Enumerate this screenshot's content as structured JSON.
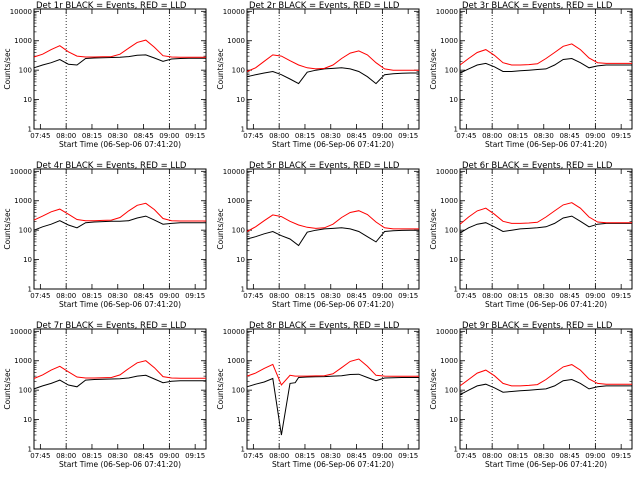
{
  "layout": {
    "rows": 3,
    "cols": 3
  },
  "common": {
    "ylabel": "Counts/sec",
    "xlabel": "Start Time (06-Sep-06 07:41:20)",
    "xticks": [
      "07:45",
      "08:00",
      "08:15",
      "08:30",
      "08:45",
      "09:00",
      "09:15"
    ],
    "xtick_values": [
      3.7,
      18.7,
      33.7,
      48.7,
      63.7,
      78.7,
      93.7
    ],
    "xlim": [
      0,
      100
    ],
    "yticks": [
      "1",
      "10",
      "100",
      "1000",
      "10000"
    ],
    "ylim": [
      1,
      12000
    ],
    "dotted_x": [
      18.7,
      78.7
    ],
    "colors": {
      "events": "#000000",
      "lld": "#ff0000"
    }
  },
  "chart_data": [
    {
      "type": "line",
      "title": "Det 1r BLACK = Events, RED = LLD",
      "scale": "log",
      "x": [
        0,
        5,
        10,
        15,
        20,
        25,
        30,
        35,
        40,
        45,
        50,
        55,
        60,
        65,
        70,
        75,
        80,
        85,
        90,
        95,
        100
      ],
      "series": [
        {
          "name": "Events",
          "values": [
            120,
            150,
            180,
            230,
            160,
            150,
            250,
            260,
            265,
            270,
            275,
            290,
            320,
            330,
            260,
            200,
            240,
            250,
            255,
            255,
            255
          ]
        },
        {
          "name": "LLD",
          "values": [
            280,
            350,
            500,
            680,
            420,
            300,
            280,
            280,
            285,
            290,
            350,
            560,
            880,
            1050,
            600,
            310,
            280,
            275,
            275,
            275,
            275
          ]
        }
      ]
    },
    {
      "type": "line",
      "title": "Det 2r BLACK = Events, RED = LLD",
      "scale": "log",
      "x": [
        0,
        5,
        10,
        15,
        20,
        25,
        30,
        35,
        40,
        45,
        50,
        55,
        60,
        65,
        70,
        75,
        80,
        85,
        90,
        95,
        100
      ],
      "series": [
        {
          "name": "Events",
          "values": [
            60,
            70,
            80,
            90,
            70,
            50,
            35,
            85,
            100,
            110,
            115,
            120,
            110,
            90,
            60,
            35,
            70,
            75,
            78,
            80,
            80
          ]
        },
        {
          "name": "LLD",
          "values": [
            90,
            120,
            200,
            330,
            300,
            210,
            150,
            120,
            110,
            115,
            150,
            250,
            380,
            450,
            330,
            180,
            110,
            100,
            100,
            100,
            100
          ]
        }
      ]
    },
    {
      "type": "line",
      "title": "Det 3r BLACK = Events, RED = LLD",
      "scale": "log",
      "x": [
        0,
        5,
        10,
        15,
        20,
        25,
        30,
        35,
        40,
        45,
        50,
        55,
        60,
        65,
        70,
        75,
        80,
        85,
        90,
        95,
        100
      ],
      "series": [
        {
          "name": "Events",
          "values": [
            80,
            110,
            150,
            170,
            130,
            90,
            90,
            95,
            100,
            105,
            110,
            150,
            230,
            250,
            180,
            120,
            140,
            150,
            150,
            150,
            150
          ]
        },
        {
          "name": "LLD",
          "values": [
            150,
            250,
            400,
            500,
            320,
            180,
            150,
            150,
            155,
            165,
            250,
            400,
            650,
            780,
            500,
            260,
            180,
            170,
            170,
            170,
            170
          ]
        }
      ]
    },
    {
      "type": "line",
      "title": "Det 4r BLACK = Events, RED = LLD",
      "scale": "log",
      "x": [
        0,
        5,
        10,
        15,
        20,
        25,
        30,
        35,
        40,
        45,
        50,
        55,
        60,
        65,
        70,
        75,
        80,
        85,
        90,
        95,
        100
      ],
      "series": [
        {
          "name": "Events",
          "values": [
            100,
            130,
            160,
            210,
            150,
            120,
            180,
            190,
            195,
            200,
            200,
            210,
            260,
            300,
            220,
            160,
            170,
            180,
            180,
            180,
            180
          ]
        },
        {
          "name": "LLD",
          "values": [
            220,
            300,
            420,
            520,
            350,
            230,
            210,
            210,
            215,
            220,
            270,
            450,
            700,
            820,
            500,
            250,
            210,
            205,
            205,
            205,
            205
          ]
        }
      ]
    },
    {
      "type": "line",
      "title": "Det 5r BLACK = Events, RED = LLD",
      "scale": "log",
      "x": [
        0,
        5,
        10,
        15,
        20,
        25,
        30,
        35,
        40,
        45,
        50,
        55,
        60,
        65,
        70,
        75,
        80,
        85,
        90,
        95,
        100
      ],
      "series": [
        {
          "name": "Events",
          "values": [
            50,
            60,
            75,
            90,
            65,
            50,
            30,
            85,
            100,
            110,
            115,
            120,
            110,
            90,
            60,
            40,
            90,
            95,
            98,
            100,
            100
          ]
        },
        {
          "name": "LLD",
          "values": [
            90,
            130,
            210,
            330,
            290,
            200,
            150,
            125,
            115,
            120,
            160,
            270,
            400,
            460,
            340,
            190,
            120,
            110,
            110,
            110,
            110
          ]
        }
      ]
    },
    {
      "type": "line",
      "title": "Det 6r BLACK = Events, RED = LLD",
      "scale": "log",
      "x": [
        0,
        5,
        10,
        15,
        20,
        25,
        30,
        35,
        40,
        45,
        50,
        55,
        60,
        65,
        70,
        75,
        80,
        85,
        90,
        95,
        100
      ],
      "series": [
        {
          "name": "Events",
          "values": [
            80,
            120,
            160,
            180,
            130,
            90,
            100,
            110,
            115,
            120,
            130,
            170,
            260,
            300,
            200,
            130,
            160,
            170,
            170,
            170,
            170
          ]
        },
        {
          "name": "LLD",
          "values": [
            160,
            280,
            450,
            560,
            350,
            200,
            170,
            170,
            175,
            185,
            280,
            450,
            720,
            860,
            560,
            280,
            190,
            180,
            180,
            180,
            180
          ]
        }
      ]
    },
    {
      "type": "line",
      "title": "Det 7r BLACK = Events, RED = LLD",
      "scale": "log",
      "x": [
        0,
        5,
        10,
        15,
        20,
        25,
        30,
        35,
        40,
        45,
        50,
        55,
        60,
        65,
        70,
        75,
        80,
        85,
        90,
        95,
        100
      ],
      "series": [
        {
          "name": "Events",
          "values": [
            110,
            140,
            170,
            220,
            150,
            130,
            220,
            230,
            235,
            240,
            245,
            260,
            300,
            320,
            240,
            180,
            200,
            210,
            210,
            210,
            210
          ]
        },
        {
          "name": "LLD",
          "values": [
            250,
            330,
            480,
            650,
            420,
            280,
            260,
            260,
            265,
            270,
            330,
            540,
            850,
            1000,
            580,
            290,
            260,
            255,
            255,
            255,
            255
          ]
        }
      ]
    },
    {
      "type": "line",
      "title": "Det 8r BLACK = Events, RED = LLD",
      "scale": "log",
      "x": [
        0,
        5,
        10,
        15,
        20,
        25,
        28,
        30,
        35,
        40,
        45,
        50,
        55,
        60,
        65,
        70,
        75,
        80,
        85,
        90,
        95,
        100
      ],
      "series": [
        {
          "name": "Events",
          "values": [
            130,
            160,
            190,
            250,
            3,
            170,
            180,
            270,
            280,
            285,
            290,
            300,
            310,
            340,
            350,
            270,
            210,
            260,
            265,
            270,
            270,
            270
          ]
        },
        {
          "name": "LLD",
          "values": [
            300,
            380,
            550,
            750,
            150,
            320,
            300,
            300,
            300,
            305,
            310,
            360,
            580,
            950,
            1150,
            650,
            320,
            300,
            295,
            295,
            295,
            295
          ]
        }
      ]
    },
    {
      "type": "line",
      "title": "Det 9r BLACK = Events, RED = LLD",
      "scale": "log",
      "x": [
        0,
        5,
        10,
        15,
        20,
        25,
        30,
        35,
        40,
        45,
        50,
        55,
        60,
        65,
        70,
        75,
        80,
        85,
        90,
        95,
        100
      ],
      "series": [
        {
          "name": "Events",
          "values": [
            70,
            100,
            140,
            160,
            120,
            85,
            90,
            95,
            100,
            105,
            110,
            140,
            210,
            230,
            170,
            110,
            130,
            140,
            140,
            140,
            140
          ]
        },
        {
          "name": "LLD",
          "values": [
            140,
            230,
            380,
            480,
            310,
            170,
            140,
            140,
            145,
            155,
            230,
            380,
            620,
            740,
            480,
            240,
            170,
            160,
            160,
            160,
            160
          ]
        }
      ]
    }
  ]
}
